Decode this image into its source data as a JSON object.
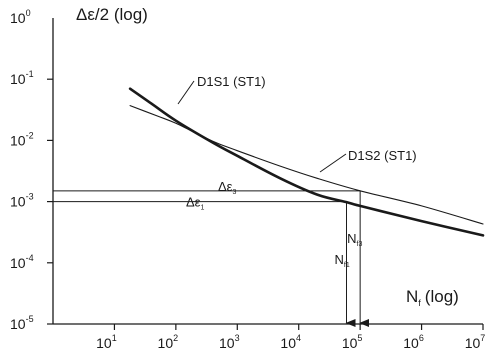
{
  "chart_data": {
    "type": "line",
    "y_axis_label": "Δε/2 (log)",
    "x_axis_label": "N",
    "x_axis_label_sub": "f",
    "x_axis_label_suffix": "(log)",
    "x_scale": "log",
    "y_scale": "log",
    "xlim": [
      1,
      10000000
    ],
    "ylim": [
      1e-05,
      1
    ],
    "x_ticks": [
      {
        "base": "10",
        "exp": "1",
        "value": 10
      },
      {
        "base": "10",
        "exp": "2",
        "value": 100
      },
      {
        "base": "10",
        "exp": "3",
        "value": 1000
      },
      {
        "base": "10",
        "exp": "4",
        "value": 10000
      },
      {
        "base": "10",
        "exp": "5",
        "value": 100000
      },
      {
        "base": "10",
        "exp": "6",
        "value": 1000000
      },
      {
        "base": "10",
        "exp": "7",
        "value": 10000000
      }
    ],
    "y_ticks": [
      {
        "base": "10",
        "exp": "0",
        "value": 1
      },
      {
        "base": "10",
        "exp": "-1",
        "value": 0.1
      },
      {
        "base": "10",
        "exp": "-2",
        "value": 0.01
      },
      {
        "base": "10",
        "exp": "-3",
        "value": 0.001
      },
      {
        "base": "10",
        "exp": "-4",
        "value": 0.0001
      },
      {
        "base": "10",
        "exp": "-5",
        "value": 1e-05
      }
    ],
    "series": [
      {
        "name": "D1S1 (ST1)",
        "style": "thick",
        "color": "#1a1a1a",
        "x": [
          18,
          40,
          100,
          400,
          1000,
          5000,
          20000,
          60000,
          100000,
          1000000,
          10000000
        ],
        "y": [
          0.07,
          0.04,
          0.021,
          0.0092,
          0.0056,
          0.0024,
          0.0013,
          0.00098,
          0.00085,
          0.00048,
          0.00028
        ]
      },
      {
        "name": "D1S2 (ST1)",
        "style": "thin",
        "color": "#1a1a1a",
        "x": [
          18,
          50,
          100,
          400,
          1000,
          5000,
          20000,
          100000,
          1000000,
          10000000
        ],
        "y": [
          0.037,
          0.025,
          0.019,
          0.0097,
          0.0068,
          0.0038,
          0.0024,
          0.0015,
          0.00085,
          0.00043
        ]
      }
    ],
    "annotations": [
      {
        "id": "d_eps_3",
        "base": "Δε",
        "sub": "3",
        "y": 0.0015,
        "nf": "N",
        "nf_sub": "f3",
        "x": 100000
      },
      {
        "id": "d_eps_1",
        "base": "Δε",
        "sub": "1",
        "y": 0.001,
        "nf": "N",
        "nf_sub": "f1",
        "x": 60000
      }
    ]
  }
}
